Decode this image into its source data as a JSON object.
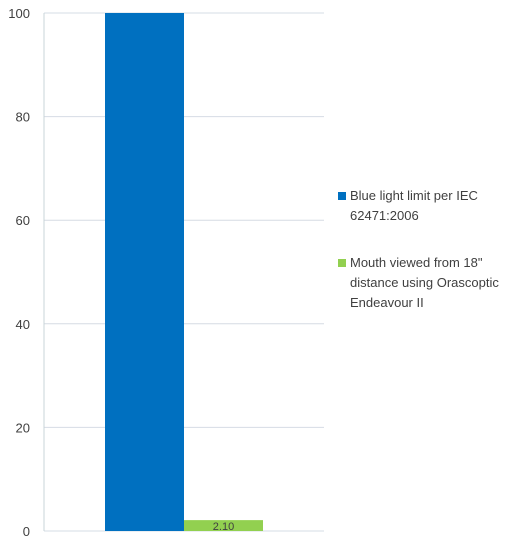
{
  "chart_data": {
    "type": "bar",
    "title": "",
    "xlabel": "",
    "ylabel": "",
    "ylim": [
      0,
      100
    ],
    "yticks": [
      0,
      20,
      40,
      60,
      80,
      100
    ],
    "grid": true,
    "legend_position": "right",
    "series": [
      {
        "name": "Blue light limit per IEC 62471:2006",
        "value": 100,
        "color": "#0070c0",
        "data_label": ""
      },
      {
        "name": "Mouth viewed from 18\" distance using Orascoptic Endeavour II",
        "value": 2.1,
        "color": "#92d050",
        "data_label": "2.10"
      }
    ]
  }
}
